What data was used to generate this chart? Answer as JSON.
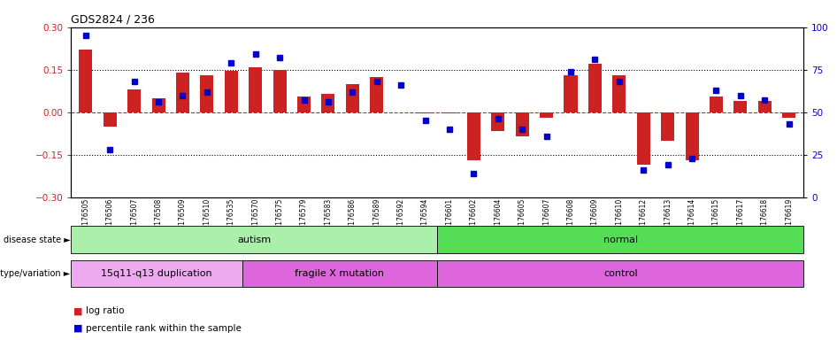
{
  "title": "GDS2824 / 236",
  "samples": [
    "GSM176505",
    "GSM176506",
    "GSM176507",
    "GSM176508",
    "GSM176509",
    "GSM176510",
    "GSM176535",
    "GSM176570",
    "GSM176575",
    "GSM176579",
    "GSM176583",
    "GSM176586",
    "GSM176589",
    "GSM176592",
    "GSM176594",
    "GSM176601",
    "GSM176602",
    "GSM176604",
    "GSM176605",
    "GSM176607",
    "GSM176608",
    "GSM176609",
    "GSM176610",
    "GSM176612",
    "GSM176613",
    "GSM176614",
    "GSM176615",
    "GSM176617",
    "GSM176618",
    "GSM176619"
  ],
  "log_ratio": [
    0.22,
    -0.05,
    0.08,
    0.05,
    0.14,
    0.13,
    0.145,
    0.16,
    0.15,
    0.055,
    0.065,
    0.1,
    0.125,
    0.0,
    -0.005,
    -0.005,
    -0.17,
    -0.065,
    -0.085,
    -0.02,
    0.13,
    0.17,
    0.13,
    -0.185,
    -0.1,
    -0.17,
    0.055,
    0.04,
    0.04,
    -0.02
  ],
  "percentile": [
    95,
    28,
    68,
    56,
    60,
    62,
    79,
    84,
    82,
    57,
    56,
    62,
    68,
    66,
    45,
    40,
    14,
    46,
    40,
    36,
    74,
    81,
    68,
    16,
    19,
    23,
    63,
    60,
    57,
    43
  ],
  "bar_color": "#cc2222",
  "dot_color": "#0000cc",
  "zero_line_color": "#cc2222",
  "hline_color": "#000000",
  "disease_state": [
    {
      "label": "autism",
      "start": 0,
      "end": 14,
      "color": "#aaf0aa"
    },
    {
      "label": "normal",
      "start": 15,
      "end": 29,
      "color": "#55dd55"
    }
  ],
  "genotype": [
    {
      "label": "15q11-q13 duplication",
      "start": 0,
      "end": 6,
      "color": "#eeaaee"
    },
    {
      "label": "fragile X mutation",
      "start": 7,
      "end": 14,
      "color": "#dd66dd"
    },
    {
      "label": "control",
      "start": 15,
      "end": 29,
      "color": "#dd66dd"
    }
  ],
  "ylim_left": [
    -0.3,
    0.3
  ],
  "ylim_right": [
    0,
    100
  ],
  "yticks_left": [
    -0.3,
    -0.15,
    0.0,
    0.15,
    0.3
  ],
  "yticks_right": [
    0,
    25,
    50,
    75,
    100
  ],
  "hlines": [
    0.15,
    -0.15
  ],
  "bar_width": 0.55
}
